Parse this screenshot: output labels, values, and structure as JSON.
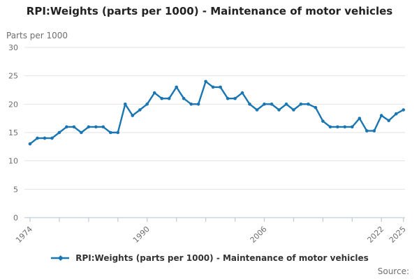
{
  "header": {
    "title": "RPI:Weights (parts per 1000) - Maintenance of motor vehicles"
  },
  "legend": {
    "label": "RPI:Weights (parts per 1000) - Maintenance of motor vehicles"
  },
  "footer": {
    "source_label": "Source:"
  },
  "colors": {
    "line": "#1976b2",
    "grid": "#e3e3e3",
    "axis": "#c2cedb",
    "muted_text": "#6e6e6e",
    "dark_text": "#222222"
  },
  "chart_data": {
    "type": "line",
    "title": "RPI:Weights (parts per 1000) - Maintenance of motor vehicles",
    "unit_label": "Parts per 1000",
    "series_name": "RPI:Weights (parts per 1000) - Maintenance of motor vehicles",
    "x": [
      1974,
      1975,
      1976,
      1977,
      1978,
      1979,
      1980,
      1981,
      1982,
      1983,
      1984,
      1985,
      1986,
      1987,
      1988,
      1989,
      1990,
      1991,
      1992,
      1993,
      1994,
      1995,
      1996,
      1997,
      1998,
      1999,
      2000,
      2001,
      2002,
      2003,
      2004,
      2005,
      2006,
      2007,
      2008,
      2009,
      2010,
      2011,
      2012,
      2013,
      2014,
      2015,
      2016,
      2017,
      2018,
      2019,
      2020,
      2021,
      2022,
      2023,
      2024,
      2025
    ],
    "values": [
      13,
      14,
      14,
      14,
      15,
      16,
      16,
      15,
      16,
      16,
      16,
      15,
      15,
      20,
      18,
      19,
      20,
      22,
      21,
      21,
      23,
      21,
      20,
      20,
      24,
      23,
      23,
      21,
      21,
      22,
      20,
      19,
      20,
      20,
      19,
      20,
      19,
      20,
      20,
      19.4,
      17,
      16,
      16,
      16,
      16,
      17.5,
      15.3,
      15.3,
      18,
      17.1,
      18.3,
      19
    ],
    "ylim": [
      0,
      30
    ],
    "y_ticks": [
      0,
      5,
      10,
      15,
      20,
      25,
      30
    ],
    "x_tick_years": [
      1974,
      1978,
      1982,
      1986,
      1990,
      1994,
      1998,
      2002,
      2006,
      2010,
      2014,
      2018,
      2022,
      2025
    ],
    "x_label_years": [
      1974,
      1990,
      2006,
      2022,
      2025
    ],
    "grid": "horizontal-only",
    "legend_position": "bottom",
    "markers": true
  }
}
